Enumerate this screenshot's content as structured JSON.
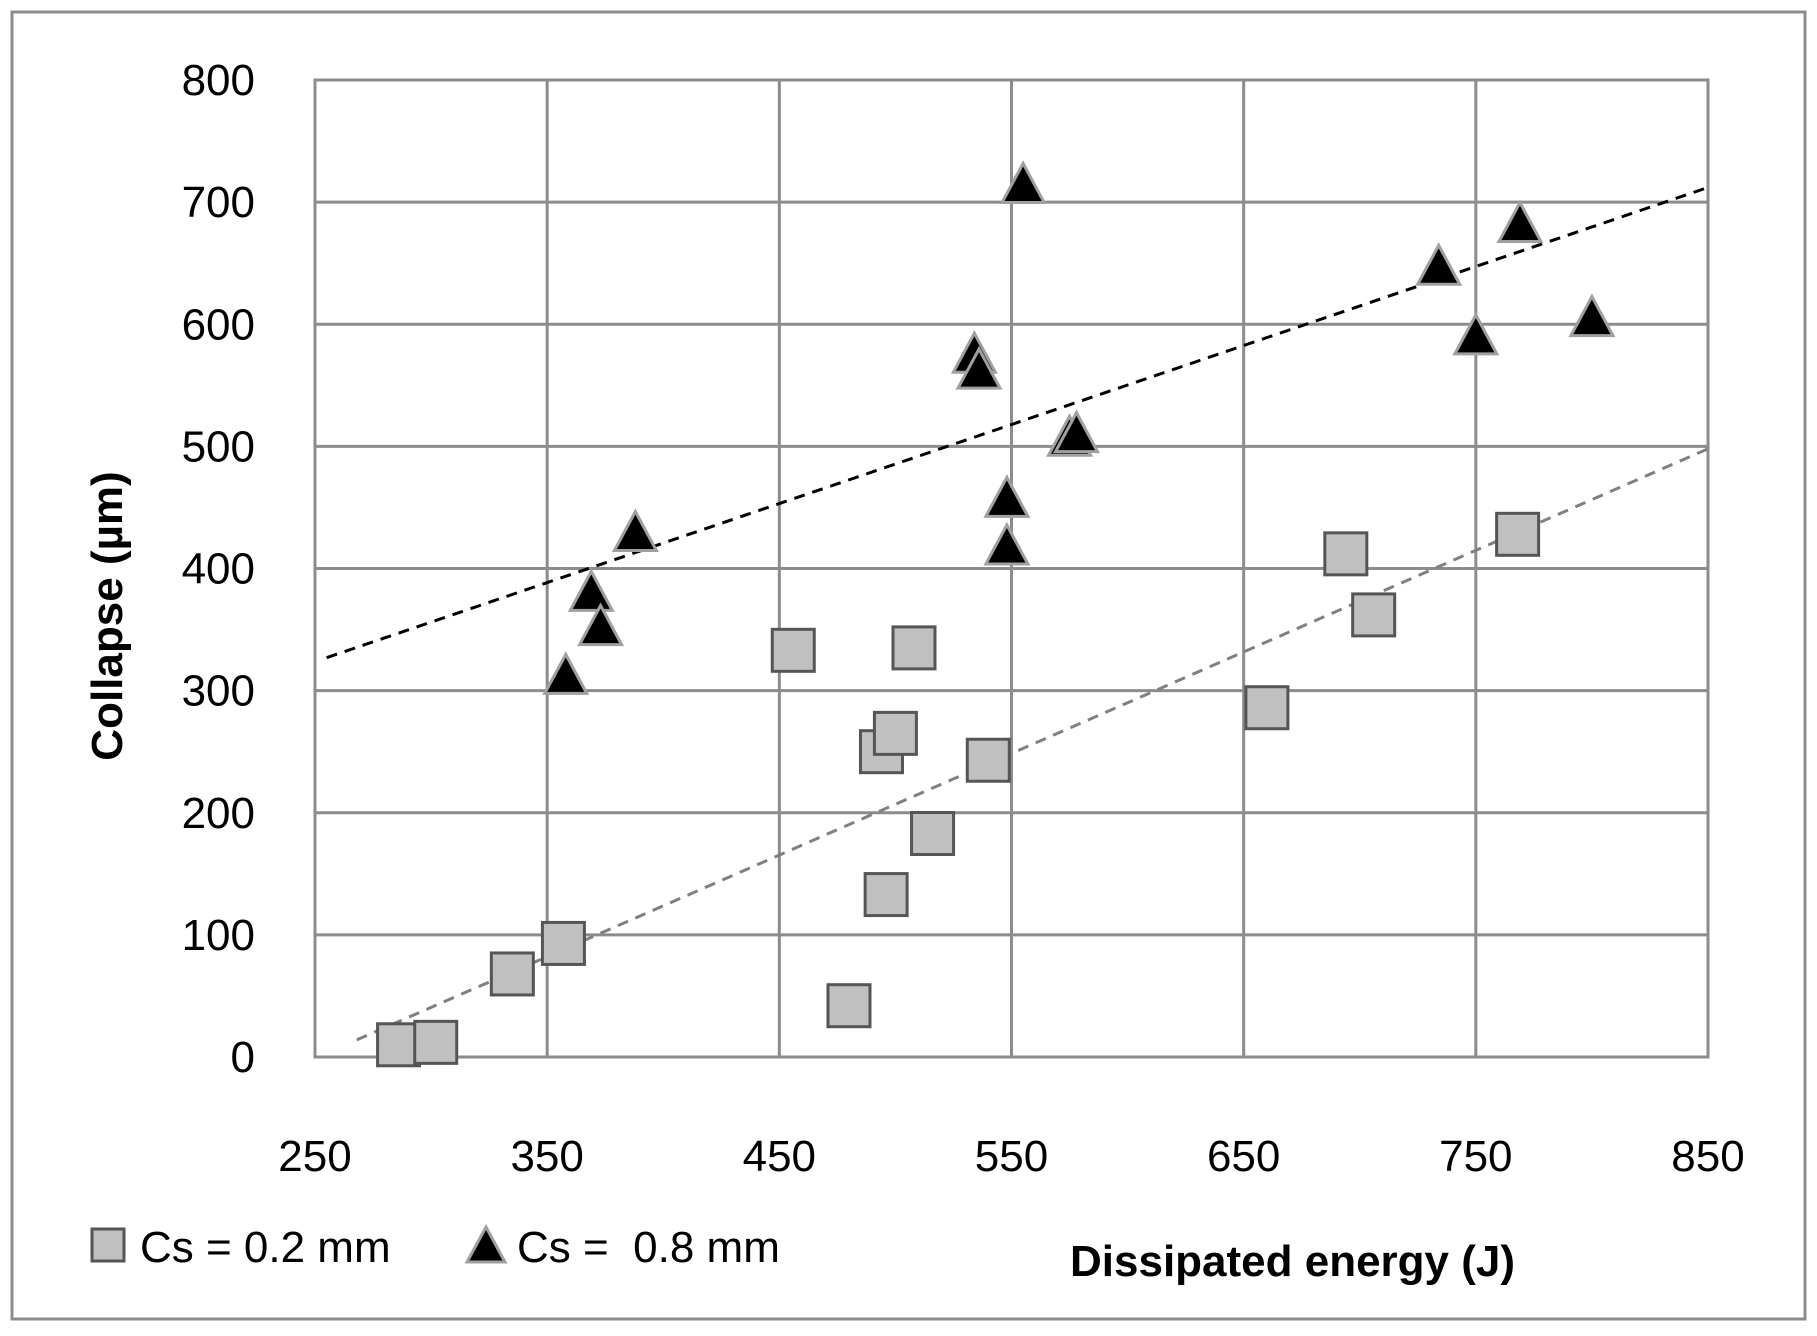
{
  "chart_data": {
    "type": "scatter",
    "title": "",
    "xlabel": "Dissipated energy (J)",
    "ylabel": "Collapse (µm)",
    "xlim": [
      250,
      850
    ],
    "ylim": [
      0,
      800
    ],
    "x_ticks": [
      250,
      350,
      450,
      550,
      650,
      750,
      850
    ],
    "y_ticks": [
      0,
      100,
      200,
      300,
      400,
      500,
      600,
      700,
      800
    ],
    "x_tick_labels": [
      "250",
      "350",
      "450",
      "550",
      "650",
      "750",
      "850"
    ],
    "y_tick_labels": [
      "0",
      "100",
      "200",
      "300",
      "400",
      "500",
      "600",
      "700",
      "800"
    ],
    "grid": true,
    "legend_position": "bottom-left",
    "series": [
      {
        "name": "Cs = 0.2 mm",
        "marker": "square",
        "color": "#c0c0c0",
        "edge_color": "#555555",
        "points": [
          [
            286,
            10
          ],
          [
            302,
            12
          ],
          [
            335,
            68
          ],
          [
            357,
            93
          ],
          [
            456,
            333
          ],
          [
            480,
            42
          ],
          [
            494,
            250
          ],
          [
            496,
            133
          ],
          [
            500,
            265
          ],
          [
            508,
            335
          ],
          [
            516,
            183
          ],
          [
            540,
            243
          ],
          [
            660,
            286
          ],
          [
            694,
            412
          ],
          [
            706,
            362
          ],
          [
            768,
            428
          ]
        ],
        "trendline": {
          "x": [
            268,
            850
          ],
          "y": [
            14,
            498
          ],
          "color": "#808080",
          "dashed": true
        }
      },
      {
        "name": "Cs =  0.8 mm",
        "marker": "triangle",
        "color": "#000000",
        "edge_color": "#a0a0a0",
        "points": [
          [
            358,
            310
          ],
          [
            369,
            378
          ],
          [
            373,
            350
          ],
          [
            388,
            427
          ],
          [
            534,
            573
          ],
          [
            536,
            560
          ],
          [
            548,
            455
          ],
          [
            548,
            416
          ],
          [
            555,
            712
          ],
          [
            575,
            505
          ],
          [
            578,
            508
          ],
          [
            734,
            645
          ],
          [
            750,
            588
          ],
          [
            769,
            680
          ],
          [
            800,
            603
          ]
        ],
        "trendline": {
          "x": [
            255,
            850
          ],
          "y": [
            327,
            712
          ],
          "color": "#000000",
          "dashed": true
        }
      }
    ]
  },
  "legend": {
    "items": [
      {
        "label": "Cs = 0.2 mm",
        "marker": "square"
      },
      {
        "label": "Cs =  0.8 mm",
        "marker": "triangle"
      }
    ]
  }
}
